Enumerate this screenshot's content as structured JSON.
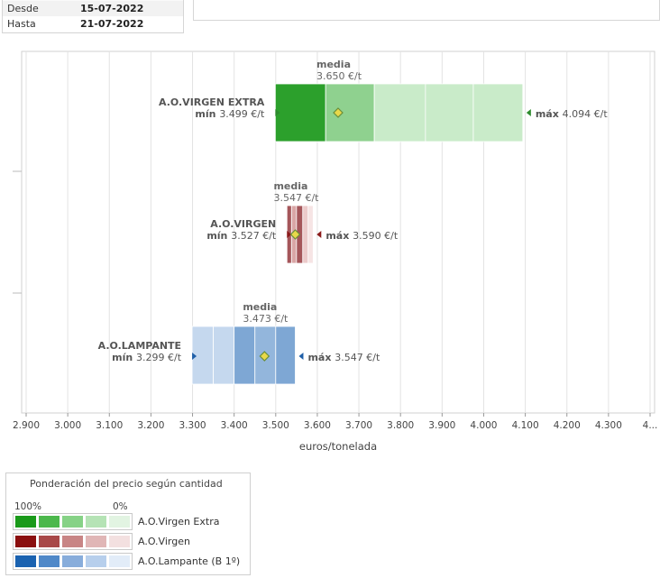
{
  "date_filter": {
    "rows": [
      {
        "label": "Desde",
        "value": "15-07-2022"
      },
      {
        "label": "Hasta",
        "value": "21-07-2022"
      }
    ]
  },
  "chart_data": {
    "type": "bar",
    "orientation": "horizontal",
    "xlabel": "euros/tonelada",
    "xlim": [
      2900,
      4400
    ],
    "x_ticks": [
      "2.900",
      "3.000",
      "3.100",
      "3.200",
      "3.300",
      "3.400",
      "3.500",
      "3.600",
      "3.700",
      "3.800",
      "3.900",
      "4.000",
      "4.100",
      "4.200",
      "4.300",
      "4..."
    ],
    "grid": true,
    "series": [
      {
        "name": "A.O.VIRGEN EXTRA",
        "min": 3499,
        "max": 4094,
        "media": 3650,
        "min_label": "3.499 €/t",
        "max_label": "4.094 €/t",
        "media_label": "3.650 €/t",
        "segments": [
          3499,
          3620,
          3737,
          3860,
          3975,
          4094
        ],
        "colors": [
          "#2ca02c",
          "#8fd18f",
          "#c9ebc9",
          "#c9ebc9",
          "#c9ebc9"
        ],
        "marker_color": "#2e8b2e"
      },
      {
        "name": "A.O.VIRGEN",
        "min": 3527,
        "max": 3590,
        "media": 3547,
        "min_label": "3.527 €/t",
        "max_label": "3.590 €/t",
        "media_label": "3.547 €/t",
        "segments": [
          3527,
          3538,
          3550,
          3565,
          3578,
          3590
        ],
        "colors": [
          "#a5565a",
          "#d9a6a6",
          "#a5565a",
          "#eccaca",
          "#f6e4e4"
        ],
        "marker_color": "#8b1a1a"
      },
      {
        "name": "A.O.LAMPANTE",
        "min": 3299,
        "max": 3547,
        "media": 3473,
        "min_label": "3.299 €/t",
        "max_label": "3.547 €/t",
        "media_label": "3.473 €/t",
        "segments": [
          3299,
          3350,
          3400,
          3450,
          3500,
          3547
        ],
        "colors": [
          "#c5d8ee",
          "#c5d8ee",
          "#7ea7d4",
          "#93b6dc",
          "#7ea7d4"
        ],
        "marker_color": "#1f5fa8"
      }
    ],
    "media_text": "media",
    "min_text": "mín",
    "max_text": "máx"
  },
  "legend": {
    "title": "Ponderación del precio según cantidad",
    "high_label": "100%",
    "low_label": "0%",
    "items": [
      {
        "name": "A.O.Virgen Extra",
        "colors": [
          "#1a9a1a",
          "#4cb84c",
          "#86d286",
          "#b5e3b5",
          "#e2f4e2"
        ]
      },
      {
        "name": "A.O.Virgen",
        "colors": [
          "#8b0f0f",
          "#a84848",
          "#c88585",
          "#e0b6b6",
          "#f3e0e0"
        ]
      },
      {
        "name": "A.O.Lampante (B 1º)",
        "colors": [
          "#1a62b0",
          "#4f88c8",
          "#88addb",
          "#b7cfec",
          "#e2ecf8"
        ]
      }
    ]
  }
}
